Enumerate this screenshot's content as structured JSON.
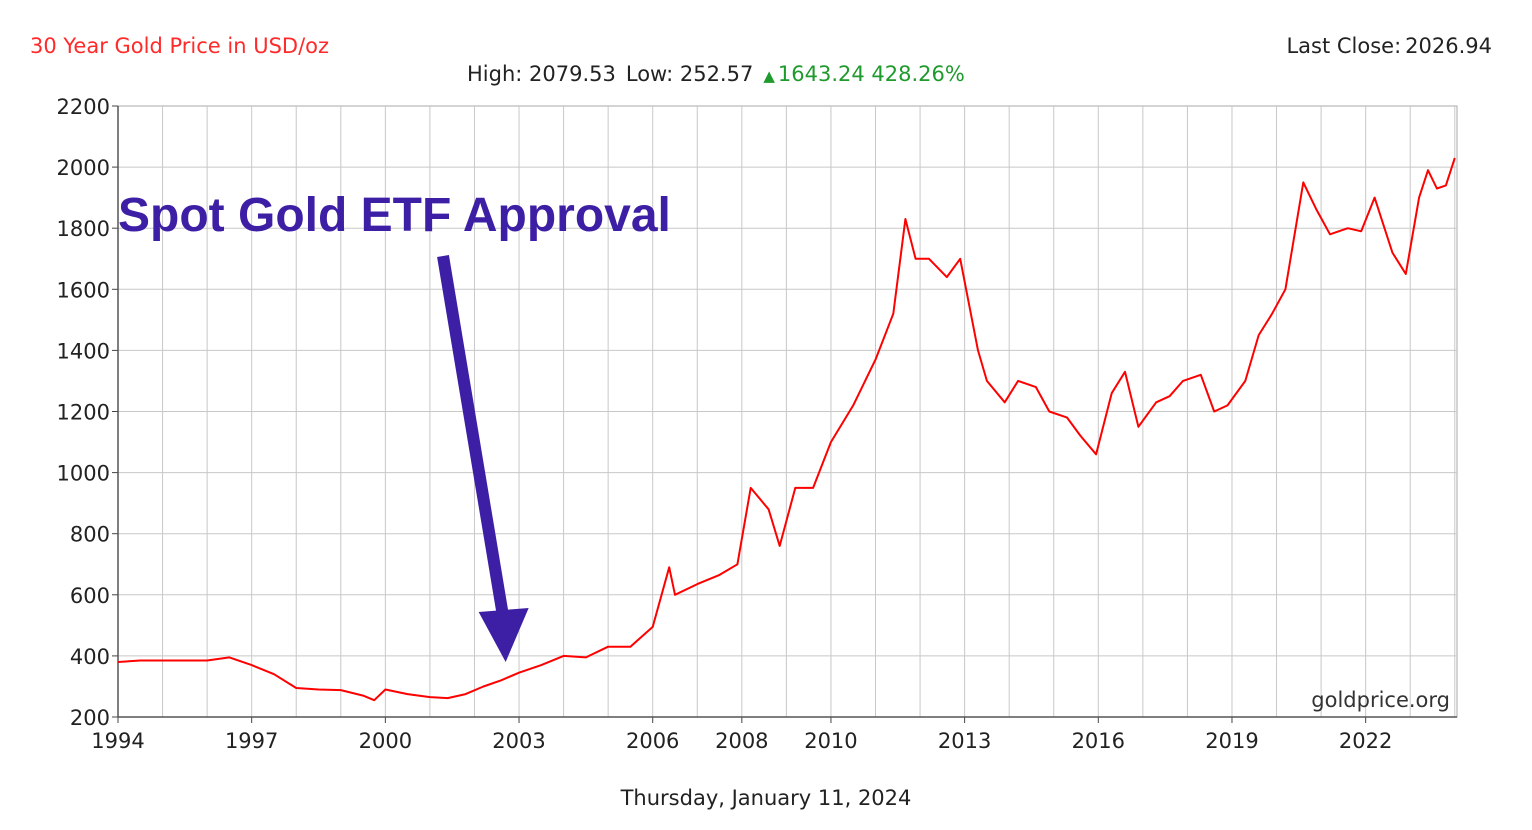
{
  "header": {
    "title": "30 Year Gold Price in USD/oz",
    "last_close_label": "Last Close:",
    "last_close_value": "2026.94",
    "high_label": "High:",
    "high_value": "2079.53",
    "low_label": "Low:",
    "low_value": "252.57",
    "change_value": "1643.24",
    "change_pct": "428.26%"
  },
  "footer": {
    "date": "Thursday, January 11, 2024"
  },
  "watermark": "goldprice.org",
  "annotation": {
    "text": "Spot Gold ETF Approval",
    "points_to_x": 2002.7
  },
  "colors": {
    "line": "#ff0000",
    "title": "#ff2a2a",
    "change": "#1f9a2c",
    "annotation": "#3d1fa5",
    "grid": "#c8c8c8"
  },
  "chart_data": {
    "type": "line",
    "title": "30 Year Gold Price in USD/oz",
    "xlabel": "",
    "ylabel": "",
    "xlim": [
      1994,
      2024.05
    ],
    "ylim": [
      200,
      2200
    ],
    "grid": true,
    "x_ticks": [
      "1994",
      "1997",
      "2000",
      "2003",
      "2006",
      "2008",
      "2010",
      "2013",
      "2016",
      "2019",
      "2022"
    ],
    "y_ticks": [
      200,
      400,
      600,
      800,
      1000,
      1200,
      1400,
      1600,
      1800,
      2000,
      2200
    ],
    "series": [
      {
        "x": [
          1994.0,
          1994.5,
          1995.0,
          1995.5,
          1996.0,
          1996.5,
          1997.0,
          1997.5,
          1998.0,
          1998.5,
          1999.0,
          1999.5,
          1999.75,
          2000.0,
          2000.5,
          2001.0,
          2001.4,
          2001.8,
          2002.2,
          2002.6,
          2003.0,
          2003.5,
          2004.0,
          2004.5,
          2005.0,
          2005.5,
          2006.0,
          2006.37,
          2006.5,
          2007.0,
          2007.5,
          2007.9,
          2008.2,
          2008.6,
          2008.85,
          2009.2,
          2009.6,
          2010.0,
          2010.5,
          2011.0,
          2011.4,
          2011.67,
          2011.9,
          2012.2,
          2012.6,
          2012.9,
          2013.3,
          2013.5,
          2013.9,
          2014.2,
          2014.6,
          2014.9,
          2015.3,
          2015.6,
          2015.95,
          2016.3,
          2016.6,
          2016.9,
          2017.3,
          2017.6,
          2017.9,
          2018.3,
          2018.6,
          2018.9,
          2019.3,
          2019.6,
          2019.9,
          2020.2,
          2020.6,
          2020.9,
          2021.2,
          2021.6,
          2021.9,
          2022.2,
          2022.6,
          2022.9,
          2023.2,
          2023.4,
          2023.6,
          2023.8,
          2024.0
        ],
        "y": [
          380,
          385,
          385,
          385,
          385,
          395,
          370,
          340,
          295,
          290,
          288,
          270,
          255,
          290,
          275,
          265,
          262,
          275,
          300,
          320,
          345,
          370,
          400,
          395,
          430,
          430,
          495,
          690,
          600,
          635,
          665,
          700,
          950,
          880,
          760,
          950,
          950,
          1100,
          1220,
          1370,
          1520,
          1830,
          1700,
          1700,
          1640,
          1700,
          1400,
          1300,
          1230,
          1300,
          1280,
          1200,
          1180,
          1120,
          1060,
          1260,
          1330,
          1150,
          1230,
          1250,
          1300,
          1320,
          1200,
          1220,
          1300,
          1450,
          1520,
          1600,
          1950,
          1860,
          1780,
          1800,
          1790,
          1900,
          1720,
          1650,
          1900,
          1990,
          1930,
          1940,
          2030
        ]
      }
    ]
  }
}
